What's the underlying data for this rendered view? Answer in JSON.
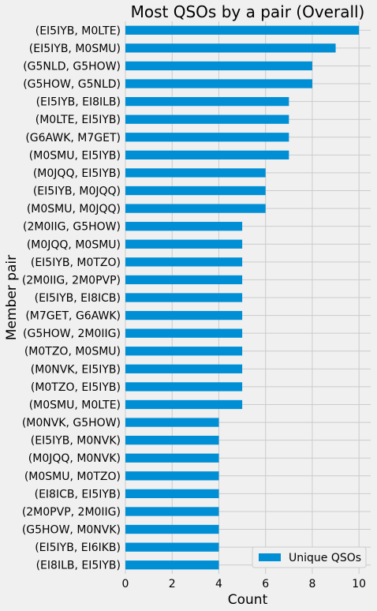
{
  "chart_data": {
    "type": "bar",
    "orientation": "horizontal",
    "title": "Most QSOs by a pair (Overall)",
    "xlabel": "Count",
    "ylabel": "Member pair",
    "xlim": [
      0,
      10.5
    ],
    "xticks": [
      0,
      2,
      4,
      6,
      8,
      10
    ],
    "grid": true,
    "legend_position": "bottom-right",
    "series": [
      {
        "name": "Unique QSOs",
        "color": "#008fd5",
        "values": [
          10,
          9,
          8,
          8,
          7,
          7,
          7,
          7,
          6,
          6,
          6,
          5,
          5,
          5,
          5,
          5,
          5,
          5,
          5,
          5,
          5,
          5,
          4,
          4,
          4,
          4,
          4,
          4,
          4,
          4,
          4
        ]
      }
    ],
    "categories": [
      "(EI5IYB, M0LTE)",
      "(EI5IYB, M0SMU)",
      "(G5NLD, G5HOW)",
      "(G5HOW, G5NLD)",
      "(EI5IYB, EI8ILB)",
      "(M0LTE, EI5IYB)",
      "(G6AWK, M7GET)",
      "(M0SMU, EI5IYB)",
      "(M0JQQ, EI5IYB)",
      "(EI5IYB, M0JQQ)",
      "(M0SMU, M0JQQ)",
      "(2M0IIG, G5HOW)",
      "(M0JQQ, M0SMU)",
      "(EI5IYB, M0TZO)",
      "(2M0IIG, 2M0PVP)",
      "(EI5IYB, EI8ICB)",
      "(M7GET, G6AWK)",
      "(G5HOW, 2M0IIG)",
      "(M0TZO, M0SMU)",
      "(M0NVK, EI5IYB)",
      "(M0TZO, EI5IYB)",
      "(M0SMU, M0LTE)",
      "(M0NVK, G5HOW)",
      "(EI5IYB, M0NVK)",
      "(M0JQQ, M0NVK)",
      "(M0SMU, M0TZO)",
      "(EI8ICB, EI5IYB)",
      "(2M0PVP, 2M0IIG)",
      "(G5HOW, M0NVK)",
      "(EI5IYB, EI6IKB)",
      "(EI8ILB, EI5IYB)"
    ]
  }
}
